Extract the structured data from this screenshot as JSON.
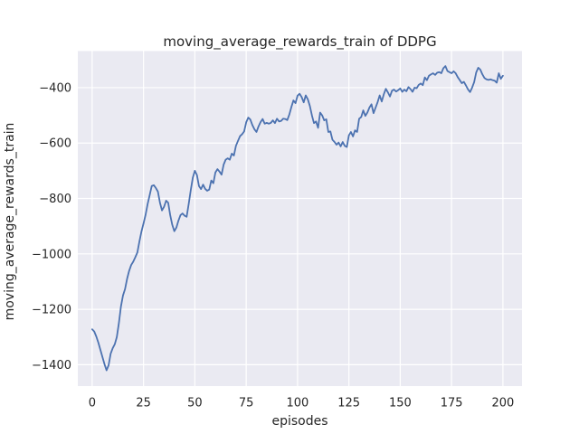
{
  "chart_data": {
    "type": "line",
    "title": "moving_average_rewards_train of DDPG",
    "xlabel": "episodes",
    "ylabel": "moving_average_rewards_train",
    "style": "seaborn-darkgrid",
    "grid": true,
    "legend": "none",
    "line_color": "#4c72b0",
    "line_width": 1.8,
    "axes_bg_color": "#eaeaf2",
    "grid_color": "#ffffff",
    "text_color": "#262626",
    "xlim": [
      -7,
      209.3
    ],
    "ylim": [
      -1477,
      -268
    ],
    "xticks": [
      0,
      25,
      50,
      75,
      100,
      125,
      150,
      175,
      200
    ],
    "xtick_labels": [
      "0",
      "25",
      "50",
      "75",
      "100",
      "125",
      "150",
      "175",
      "200"
    ],
    "yticks": [
      -400,
      -600,
      -800,
      -1000,
      -1200,
      -1400
    ],
    "ytick_labels": [
      "−400",
      "−600",
      "−800",
      "−1000",
      "−1200",
      "−1400"
    ],
    "x_start": 0,
    "x_step": 1,
    "y_values": [
      -1272,
      -1280,
      -1298,
      -1320,
      -1346,
      -1372,
      -1398,
      -1420,
      -1402,
      -1360,
      -1340,
      -1326,
      -1300,
      -1250,
      -1190,
      -1150,
      -1127,
      -1090,
      -1061,
      -1040,
      -1028,
      -1012,
      -995,
      -955,
      -919,
      -890,
      -859,
      -820,
      -788,
      -755,
      -752,
      -762,
      -775,
      -815,
      -843,
      -830,
      -808,
      -815,
      -860,
      -895,
      -918,
      -905,
      -880,
      -860,
      -854,
      -862,
      -866,
      -820,
      -770,
      -725,
      -700,
      -715,
      -755,
      -766,
      -750,
      -765,
      -772,
      -768,
      -735,
      -745,
      -706,
      -694,
      -703,
      -714,
      -678,
      -660,
      -655,
      -660,
      -638,
      -645,
      -610,
      -592,
      -575,
      -568,
      -558,
      -525,
      -508,
      -515,
      -535,
      -550,
      -560,
      -540,
      -524,
      -513,
      -530,
      -527,
      -530,
      -527,
      -518,
      -528,
      -512,
      -522,
      -520,
      -512,
      -513,
      -517,
      -497,
      -470,
      -446,
      -456,
      -429,
      -422,
      -434,
      -453,
      -428,
      -442,
      -466,
      -500,
      -528,
      -522,
      -545,
      -490,
      -500,
      -518,
      -514,
      -560,
      -558,
      -588,
      -596,
      -606,
      -598,
      -612,
      -596,
      -610,
      -614,
      -572,
      -560,
      -576,
      -554,
      -560,
      -512,
      -506,
      -482,
      -502,
      -490,
      -472,
      -460,
      -492,
      -472,
      -452,
      -428,
      -450,
      -424,
      -404,
      -417,
      -432,
      -411,
      -407,
      -414,
      -409,
      -403,
      -415,
      -407,
      -413,
      -398,
      -405,
      -415,
      -400,
      -402,
      -390,
      -385,
      -391,
      -363,
      -373,
      -357,
      -352,
      -348,
      -354,
      -346,
      -344,
      -348,
      -330,
      -322,
      -340,
      -344,
      -348,
      -341,
      -348,
      -362,
      -373,
      -384,
      -379,
      -392,
      -406,
      -416,
      -400,
      -380,
      -345,
      -328,
      -335,
      -352,
      -365,
      -370,
      -372,
      -370,
      -373,
      -375,
      -382,
      -348,
      -368,
      -357
    ]
  }
}
